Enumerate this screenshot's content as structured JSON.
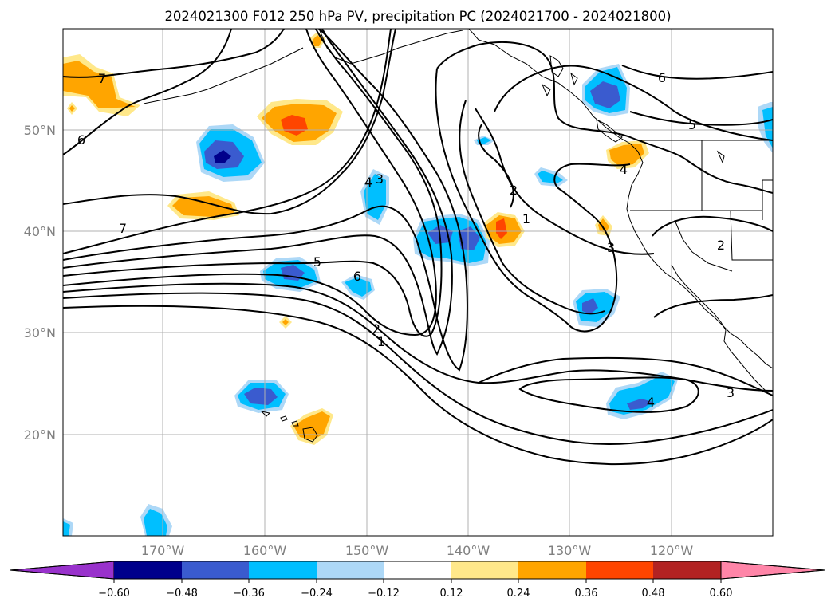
{
  "title": "2024021300 F012 250 hPa PV, precipitation PC (2024021700 - 2024021800)",
  "map": {
    "lat_labels": [
      "50°N",
      "40°N",
      "30°N",
      "20°N"
    ],
    "lon_labels": [
      "170°W",
      "160°W",
      "150°W",
      "140°W",
      "130°W",
      "120°W"
    ],
    "gridlines": true
  },
  "colorbar": {
    "orientation": "horizontal",
    "extend": "both",
    "tick_labels": [
      "−0.60",
      "−0.48",
      "−0.36",
      "−0.24",
      "−0.12",
      "0.12",
      "0.24",
      "0.36",
      "0.48",
      "0.60"
    ],
    "colors": {
      "under": "#9932cc",
      "b1": "#00008b",
      "b2": "#3a5bcf",
      "b3": "#00bfff",
      "b4": "#add8f7",
      "b5": "#ffffff",
      "b6": "#ffe88a",
      "b7": "#ffa500",
      "b8": "#ff4500",
      "b9": "#b22222",
      "over": "#ff85a8"
    }
  },
  "contour_labels": [
    "7",
    "6",
    "7",
    "5",
    "6",
    "4",
    "3",
    "2",
    "1",
    "2",
    "1",
    "6",
    "5",
    "4",
    "3",
    "2",
    "3",
    "4"
  ]
}
